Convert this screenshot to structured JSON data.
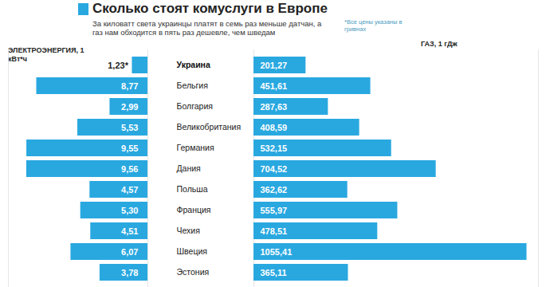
{
  "chart_data": [
    {
      "type": "bar",
      "orientation": "horizontal",
      "title": "Сколько стоят комуслуги в Европе",
      "subtitle": "За киловатт света украинцы платят в семь раз меньше датчан, а газ нам обходится в пять раз дешевле, чем шведам",
      "note": "*Все цены указаны в гривнах",
      "x_label": "ЭЛЕКТРОЭНЕРГИЯ, 1 кВт*ч",
      "categories": [
        "Украина",
        "Бельгия",
        "Болгария",
        "Великобритания",
        "Германия",
        "Дания",
        "Польша",
        "Франция",
        "Чехия",
        "Швеция",
        "Эстония"
      ],
      "values": [
        1.23,
        8.77,
        2.99,
        5.53,
        9.55,
        9.56,
        4.57,
        5.3,
        4.51,
        6.07,
        3.78
      ],
      "value_labels": [
        "1,23*",
        "8,77",
        "2,99",
        "5,53",
        "9,55",
        "9,56",
        "4,57",
        "5,30",
        "4,51",
        "6,07",
        "3,78"
      ],
      "color": "#29a8e0",
      "xlim": [
        0,
        11
      ],
      "data_labels": true,
      "tick_labels": "y"
    },
    {
      "type": "bar",
      "orientation": "horizontal",
      "x_label": "ГАЗ, 1 гДж",
      "categories": [
        "Украина",
        "Бельгия",
        "Болгария",
        "Великобритания",
        "Германия",
        "Дания",
        "Польша",
        "Франция",
        "Чехия",
        "Швеция",
        "Эстония"
      ],
      "values": [
        201.27,
        451.61,
        287.63,
        408.59,
        532.15,
        704.52,
        362.62,
        555.97,
        478.51,
        1055.41,
        365.11
      ],
      "value_labels": [
        "201,27",
        "451,61",
        "287,63",
        "408,59",
        "532,15",
        "704,52",
        "362,62",
        "555,97",
        "478,51",
        "1055,41",
        "365,11"
      ],
      "color": "#29a8e0",
      "xlim": [
        0,
        1100
      ],
      "data_labels": true,
      "tick_labels": false
    }
  ]
}
